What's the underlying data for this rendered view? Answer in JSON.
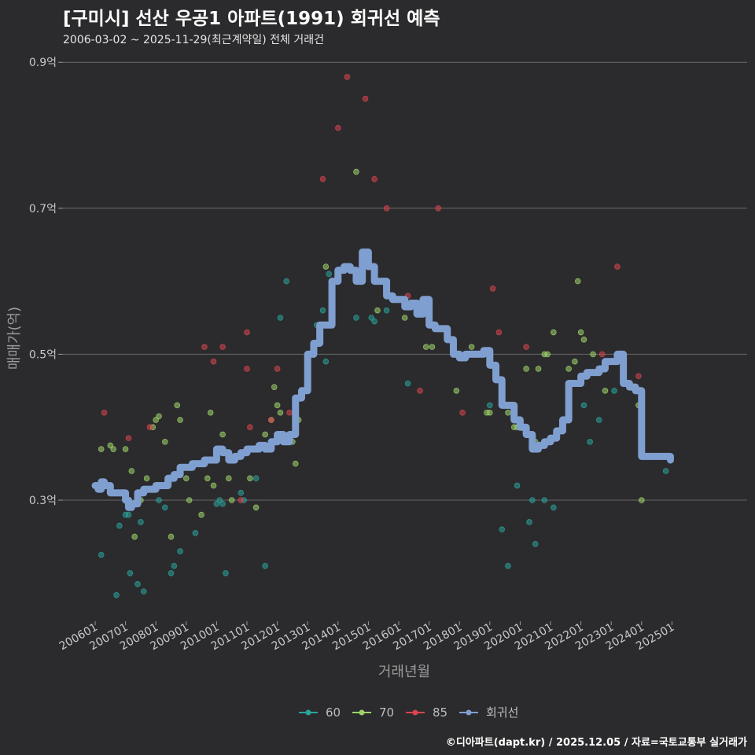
{
  "header": {
    "title": "[구미시] 선산 우공1 아파트(1991) 회귀선 예측",
    "subtitle": "2006-03-02 ~ 2025-11-29(최근계약일) 전체 거래건"
  },
  "footer": {
    "credit": "©디아파트(dapt.kr) / 2025.12.05 / 자료=국토교통부 실거래가"
  },
  "colors": {
    "s60": "#2aa39a",
    "s70": "#9fd36a",
    "s85": "#d9444f",
    "regression": "#7f9fd0",
    "grid": "#6a6a6a"
  },
  "chart_data": {
    "type": "scatter",
    "title": "[구미시] 선산 우공1 아파트(1991) 회귀선 예측",
    "xlabel": "거래년월",
    "ylabel": "매매가(억)",
    "xlim": [
      2006.0,
      2026.0
    ],
    "ylim": [
      0.14,
      0.92
    ],
    "yticks": [
      0.3,
      0.5,
      0.7,
      0.9
    ],
    "ytick_labels": [
      "0.3억",
      "0.5억",
      "0.7억",
      "0.9억"
    ],
    "xticks": [
      2006.0,
      2007.0,
      2008.0,
      2009.0,
      2010.0,
      2011.0,
      2012.0,
      2013.0,
      2014.0,
      2015.0,
      2016.0,
      2017.0,
      2018.0,
      2019.0,
      2020.0,
      2021.0,
      2022.0,
      2023.0,
      2024.0,
      2025.0
    ],
    "xtick_labels": [
      "200601",
      "200701",
      "200801",
      "200901",
      "201001",
      "201101",
      "201201",
      "201301",
      "201401",
      "201501",
      "201601",
      "201701",
      "201801",
      "201901",
      "202001",
      "202101",
      "202201",
      "202301",
      "202401",
      "202501"
    ],
    "legend": [
      "60",
      "70",
      "85",
      "회귀선"
    ],
    "series": [
      {
        "name": "60",
        "points": [
          [
            2006.2,
            0.225
          ],
          [
            2006.7,
            0.17
          ],
          [
            2006.8,
            0.265
          ],
          [
            2007.0,
            0.28
          ],
          [
            2007.1,
            0.28
          ],
          [
            2007.15,
            0.2
          ],
          [
            2007.4,
            0.185
          ],
          [
            2007.5,
            0.27
          ],
          [
            2007.6,
            0.175
          ],
          [
            2008.1,
            0.3
          ],
          [
            2008.3,
            0.29
          ],
          [
            2008.5,
            0.2
          ],
          [
            2008.6,
            0.21
          ],
          [
            2008.8,
            0.23
          ],
          [
            2009.3,
            0.255
          ],
          [
            2010.0,
            0.295
          ],
          [
            2010.1,
            0.3
          ],
          [
            2010.2,
            0.295
          ],
          [
            2010.3,
            0.2
          ],
          [
            2010.8,
            0.31
          ],
          [
            2010.9,
            0.3
          ],
          [
            2011.3,
            0.33
          ],
          [
            2011.6,
            0.21
          ],
          [
            2012.1,
            0.55
          ],
          [
            2012.3,
            0.6
          ],
          [
            2013.3,
            0.54
          ],
          [
            2013.5,
            0.56
          ],
          [
            2013.6,
            0.49
          ],
          [
            2013.7,
            0.61
          ],
          [
            2014.6,
            0.55
          ],
          [
            2015.1,
            0.55
          ],
          [
            2015.2,
            0.545
          ],
          [
            2015.6,
            0.56
          ],
          [
            2016.3,
            0.46
          ],
          [
            2017.8,
            0.5
          ],
          [
            2019.0,
            0.43
          ],
          [
            2019.4,
            0.26
          ],
          [
            2019.6,
            0.21
          ],
          [
            2019.9,
            0.32
          ],
          [
            2020.3,
            0.27
          ],
          [
            2020.4,
            0.3
          ],
          [
            2020.5,
            0.24
          ],
          [
            2020.8,
            0.3
          ],
          [
            2021.1,
            0.29
          ],
          [
            2021.4,
            0.41
          ],
          [
            2022.1,
            0.43
          ],
          [
            2022.3,
            0.38
          ],
          [
            2022.6,
            0.41
          ],
          [
            2023.1,
            0.45
          ],
          [
            2024.8,
            0.34
          ]
        ]
      },
      {
        "name": "70",
        "points": [
          [
            2006.2,
            0.37
          ],
          [
            2006.5,
            0.375
          ],
          [
            2006.6,
            0.37
          ],
          [
            2007.0,
            0.37
          ],
          [
            2007.2,
            0.34
          ],
          [
            2007.3,
            0.25
          ],
          [
            2007.5,
            0.3
          ],
          [
            2007.7,
            0.33
          ],
          [
            2007.9,
            0.4
          ],
          [
            2008.0,
            0.41
          ],
          [
            2008.1,
            0.415
          ],
          [
            2008.3,
            0.38
          ],
          [
            2008.5,
            0.25
          ],
          [
            2008.7,
            0.43
          ],
          [
            2008.8,
            0.41
          ],
          [
            2009.0,
            0.33
          ],
          [
            2009.1,
            0.3
          ],
          [
            2009.5,
            0.28
          ],
          [
            2009.7,
            0.33
          ],
          [
            2009.8,
            0.42
          ],
          [
            2009.9,
            0.32
          ],
          [
            2010.2,
            0.39
          ],
          [
            2010.4,
            0.33
          ],
          [
            2010.5,
            0.3
          ],
          [
            2011.1,
            0.33
          ],
          [
            2011.3,
            0.29
          ],
          [
            2011.6,
            0.39
          ],
          [
            2011.8,
            0.41
          ],
          [
            2011.9,
            0.455
          ],
          [
            2012.0,
            0.43
          ],
          [
            2012.1,
            0.42
          ],
          [
            2012.5,
            0.38
          ],
          [
            2012.6,
            0.35
          ],
          [
            2012.7,
            0.41
          ],
          [
            2013.6,
            0.62
          ],
          [
            2014.6,
            0.75
          ],
          [
            2015.3,
            0.56
          ],
          [
            2015.8,
            0.575
          ],
          [
            2016.2,
            0.55
          ],
          [
            2016.9,
            0.51
          ],
          [
            2017.1,
            0.51
          ],
          [
            2017.9,
            0.45
          ],
          [
            2018.2,
            0.5
          ],
          [
            2018.4,
            0.51
          ],
          [
            2018.9,
            0.42
          ],
          [
            2019.0,
            0.42
          ],
          [
            2019.4,
            0.45
          ],
          [
            2019.6,
            0.42
          ],
          [
            2019.8,
            0.4
          ],
          [
            2019.9,
            0.4
          ],
          [
            2020.0,
            0.4
          ],
          [
            2020.2,
            0.48
          ],
          [
            2020.5,
            0.38
          ],
          [
            2020.6,
            0.48
          ],
          [
            2020.8,
            0.5
          ],
          [
            2020.9,
            0.5
          ],
          [
            2021.1,
            0.53
          ],
          [
            2021.6,
            0.48
          ],
          [
            2021.8,
            0.49
          ],
          [
            2021.9,
            0.6
          ],
          [
            2022.0,
            0.53
          ],
          [
            2022.1,
            0.52
          ],
          [
            2022.4,
            0.5
          ],
          [
            2022.8,
            0.45
          ],
          [
            2023.9,
            0.43
          ],
          [
            2024.0,
            0.3
          ]
        ]
      },
      {
        "name": "85",
        "points": [
          [
            2006.3,
            0.42
          ],
          [
            2007.1,
            0.385
          ],
          [
            2007.8,
            0.4
          ],
          [
            2009.6,
            0.51
          ],
          [
            2009.9,
            0.49
          ],
          [
            2010.2,
            0.51
          ],
          [
            2010.8,
            0.3
          ],
          [
            2011.0,
            0.48
          ],
          [
            2011.0,
            0.53
          ],
          [
            2011.1,
            0.4
          ],
          [
            2011.8,
            0.41
          ],
          [
            2012.0,
            0.48
          ],
          [
            2012.4,
            0.42
          ],
          [
            2013.5,
            0.74
          ],
          [
            2014.0,
            0.81
          ],
          [
            2014.3,
            0.88
          ],
          [
            2014.9,
            0.85
          ],
          [
            2015.2,
            0.74
          ],
          [
            2015.6,
            0.7
          ],
          [
            2016.3,
            0.58
          ],
          [
            2016.7,
            0.45
          ],
          [
            2017.3,
            0.7
          ],
          [
            2018.1,
            0.42
          ],
          [
            2019.1,
            0.59
          ],
          [
            2019.3,
            0.53
          ],
          [
            2020.2,
            0.51
          ],
          [
            2022.7,
            0.5
          ],
          [
            2022.9,
            0.49
          ],
          [
            2023.2,
            0.62
          ],
          [
            2023.9,
            0.47
          ]
        ]
      }
    ],
    "regression": {
      "name": "회귀선",
      "points": [
        [
          2006.0,
          0.32
        ],
        [
          2006.1,
          0.315
        ],
        [
          2006.2,
          0.325
        ],
        [
          2006.3,
          0.32
        ],
        [
          2006.5,
          0.31
        ],
        [
          2006.8,
          0.31
        ],
        [
          2007.0,
          0.3
        ],
        [
          2007.1,
          0.29
        ],
        [
          2007.2,
          0.295
        ],
        [
          2007.4,
          0.31
        ],
        [
          2007.6,
          0.315
        ],
        [
          2007.8,
          0.315
        ],
        [
          2008.0,
          0.32
        ],
        [
          2008.2,
          0.32
        ],
        [
          2008.4,
          0.33
        ],
        [
          2008.6,
          0.335
        ],
        [
          2008.8,
          0.345
        ],
        [
          2009.0,
          0.345
        ],
        [
          2009.2,
          0.35
        ],
        [
          2009.4,
          0.35
        ],
        [
          2009.6,
          0.355
        ],
        [
          2009.8,
          0.355
        ],
        [
          2010.0,
          0.37
        ],
        [
          2010.2,
          0.365
        ],
        [
          2010.4,
          0.355
        ],
        [
          2010.6,
          0.36
        ],
        [
          2010.8,
          0.365
        ],
        [
          2011.0,
          0.37
        ],
        [
          2011.2,
          0.37
        ],
        [
          2011.4,
          0.375
        ],
        [
          2011.6,
          0.37
        ],
        [
          2011.8,
          0.38
        ],
        [
          2012.0,
          0.39
        ],
        [
          2012.2,
          0.38
        ],
        [
          2012.4,
          0.39
        ],
        [
          2012.6,
          0.44
        ],
        [
          2012.8,
          0.45
        ],
        [
          2013.0,
          0.5
        ],
        [
          2013.2,
          0.515
        ],
        [
          2013.4,
          0.54
        ],
        [
          2013.6,
          0.54
        ],
        [
          2013.8,
          0.6
        ],
        [
          2014.0,
          0.615
        ],
        [
          2014.2,
          0.62
        ],
        [
          2014.4,
          0.615
        ],
        [
          2014.6,
          0.6
        ],
        [
          2014.8,
          0.64
        ],
        [
          2015.0,
          0.62
        ],
        [
          2015.2,
          0.6
        ],
        [
          2015.4,
          0.6
        ],
        [
          2015.6,
          0.58
        ],
        [
          2015.8,
          0.575
        ],
        [
          2016.0,
          0.575
        ],
        [
          2016.2,
          0.565
        ],
        [
          2016.4,
          0.57
        ],
        [
          2016.6,
          0.555
        ],
        [
          2016.8,
          0.575
        ],
        [
          2017.0,
          0.54
        ],
        [
          2017.2,
          0.535
        ],
        [
          2017.4,
          0.535
        ],
        [
          2017.6,
          0.52
        ],
        [
          2017.8,
          0.5
        ],
        [
          2018.0,
          0.495
        ],
        [
          2018.2,
          0.5
        ],
        [
          2018.4,
          0.5
        ],
        [
          2018.6,
          0.5
        ],
        [
          2018.8,
          0.505
        ],
        [
          2019.0,
          0.485
        ],
        [
          2019.2,
          0.465
        ],
        [
          2019.4,
          0.43
        ],
        [
          2019.6,
          0.43
        ],
        [
          2019.8,
          0.41
        ],
        [
          2020.0,
          0.4
        ],
        [
          2020.2,
          0.39
        ],
        [
          2020.4,
          0.37
        ],
        [
          2020.6,
          0.375
        ],
        [
          2020.8,
          0.38
        ],
        [
          2021.0,
          0.385
        ],
        [
          2021.2,
          0.395
        ],
        [
          2021.4,
          0.41
        ],
        [
          2021.6,
          0.46
        ],
        [
          2021.8,
          0.46
        ],
        [
          2022.0,
          0.47
        ],
        [
          2022.2,
          0.475
        ],
        [
          2022.4,
          0.475
        ],
        [
          2022.6,
          0.48
        ],
        [
          2022.8,
          0.49
        ],
        [
          2023.0,
          0.49
        ],
        [
          2023.2,
          0.5
        ],
        [
          2023.4,
          0.46
        ],
        [
          2023.6,
          0.455
        ],
        [
          2023.8,
          0.45
        ],
        [
          2024.0,
          0.36
        ],
        [
          2024.2,
          0.36
        ],
        [
          2024.4,
          0.36
        ],
        [
          2024.6,
          0.36
        ],
        [
          2024.8,
          0.36
        ],
        [
          2024.95,
          0.355
        ]
      ]
    }
  }
}
